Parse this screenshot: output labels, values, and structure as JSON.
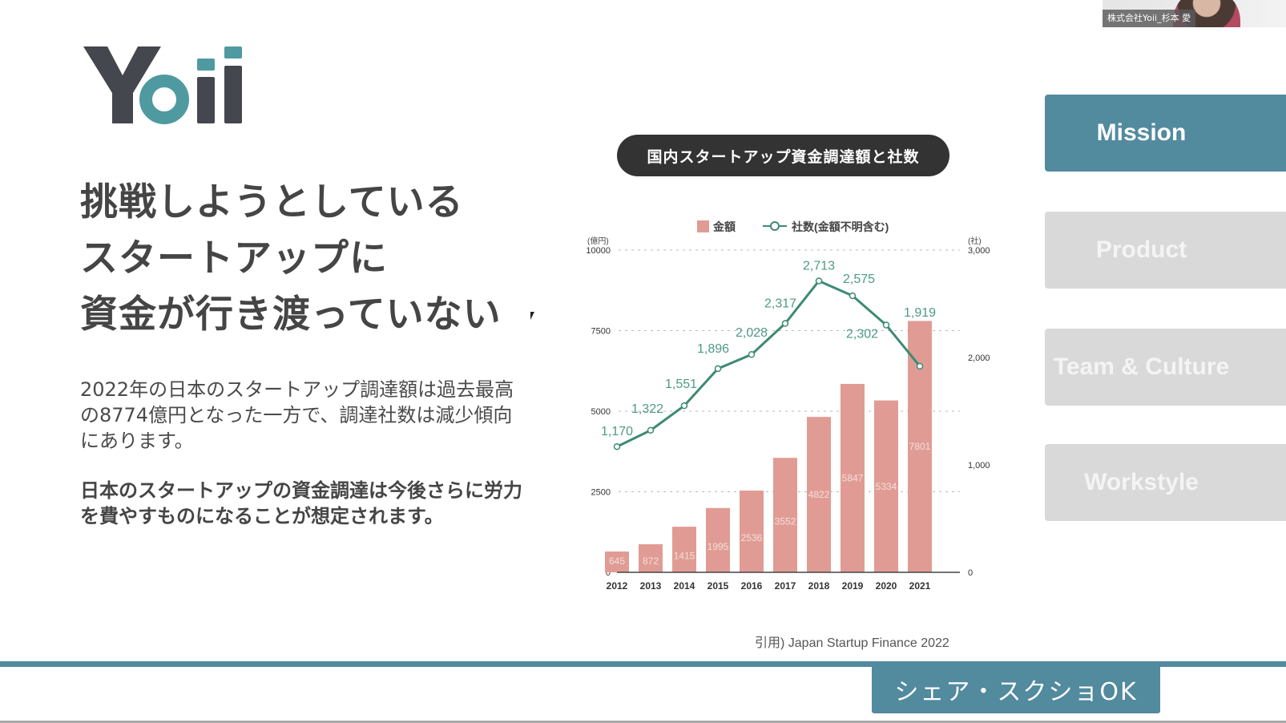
{
  "video_tile": {
    "participant_name": "株式会社Yoii_杉本 愛"
  },
  "logo": {
    "text": "Yoii",
    "dark_color": "#44474d",
    "accent_color": "#4f9aa0"
  },
  "headline": {
    "lines": [
      "挑戦しようとしている",
      "スタートアップに",
      "資金が行き渡っていない"
    ]
  },
  "body": {
    "paragraph1": "2022年の日本のスタートアップ調達額は過去最高の8774億円となった一方で、調達社数は減少傾向にあります。",
    "paragraph2": "日本のスタートアップの資金調達は今後さらに労力を費やすものになることが想定されます。"
  },
  "chart_title": "国内スタートアップ資金調達額と社数",
  "source": "引用) Japan Startup Finance 2022",
  "nav": {
    "items": [
      {
        "label": "Mission",
        "active": true
      },
      {
        "label": "Product",
        "active": false
      },
      {
        "label": "Team & Culture",
        "active": false
      },
      {
        "label": "Workstyle",
        "active": false
      }
    ]
  },
  "footer": {
    "share_label": "シェア・スクショOK"
  },
  "colors": {
    "accent": "#528a9e",
    "bar": "#e09c94",
    "line": "#3e8a74",
    "inactive_nav": "#d9d9d9"
  },
  "chart_data": {
    "type": "bar+line",
    "title": "国内スタートアップ資金調達額と社数",
    "categories": [
      "2012",
      "2013",
      "2014",
      "2015",
      "2016",
      "2017",
      "2018",
      "2019",
      "2020",
      "2021"
    ],
    "series": [
      {
        "name": "金額",
        "type": "bar",
        "axis": "left",
        "unit": "億円",
        "values": [
          645,
          872,
          1415,
          1995,
          2536,
          3552,
          4822,
          5847,
          5334,
          7801
        ]
      },
      {
        "name": "社数(金額不明含む)",
        "type": "line",
        "axis": "right",
        "unit": "社",
        "values": [
          1170,
          1322,
          1551,
          1896,
          2028,
          2317,
          2713,
          2575,
          2302,
          1919
        ],
        "labels": [
          "1,170",
          "1,322",
          "1,551",
          "1,896",
          "2,028",
          "2,317",
          "2,713",
          "2,575",
          "2,302",
          "1,919"
        ]
      }
    ],
    "left_axis": {
      "label": "(億円)",
      "ticks": [
        "0",
        "2500",
        "5000",
        "7500",
        "10000"
      ],
      "range": [
        0,
        10000
      ]
    },
    "right_axis": {
      "label": "(社)",
      "ticks": [
        "0",
        "1,000",
        "2,000",
        "3,000"
      ],
      "range": [
        0,
        3000
      ]
    },
    "legend": [
      "金額",
      "社数(金額不明含む)"
    ],
    "legend_position": "top",
    "grid": "dashed horizontal",
    "source": "Japan Startup Finance 2022"
  }
}
